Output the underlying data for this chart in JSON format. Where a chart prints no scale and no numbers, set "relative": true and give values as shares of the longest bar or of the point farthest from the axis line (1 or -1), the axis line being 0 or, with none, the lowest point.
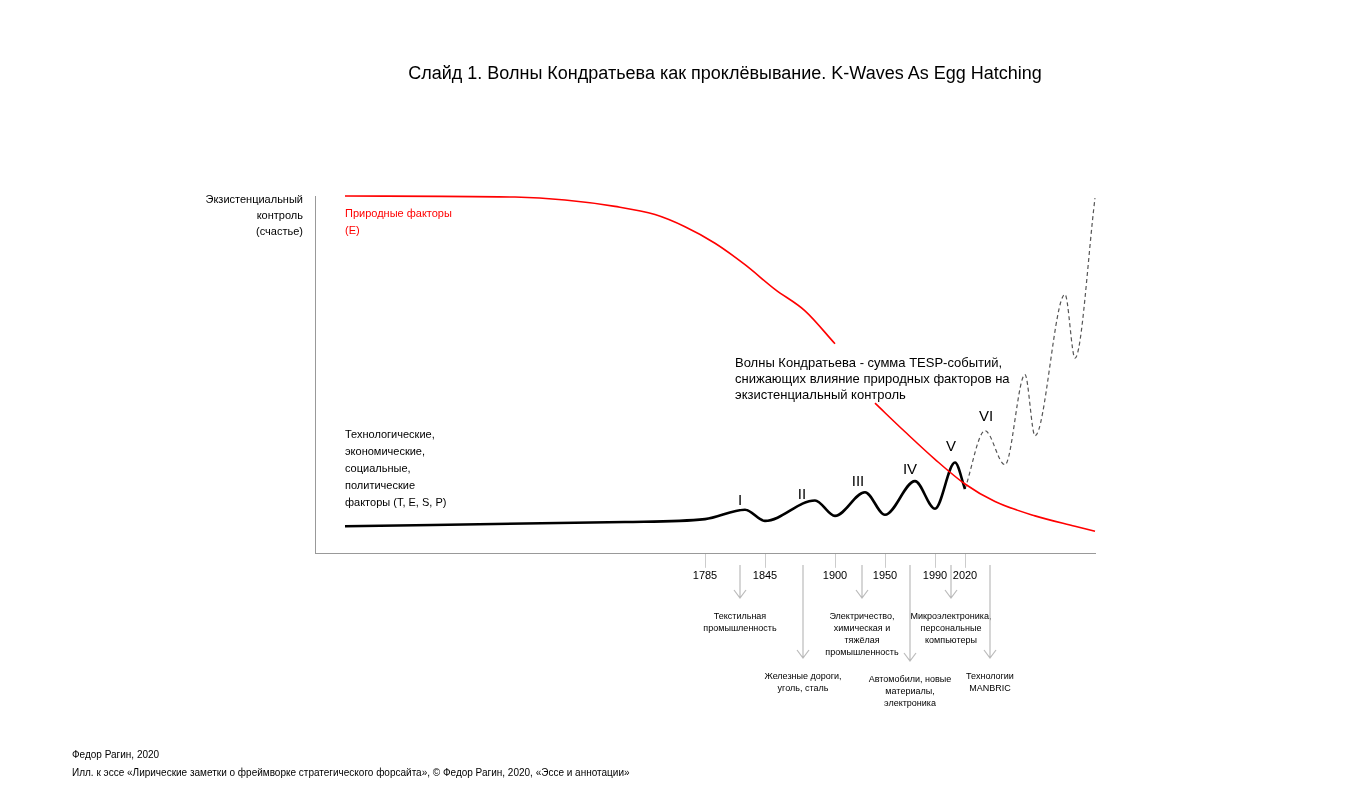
{
  "chart_data": {
    "type": "line",
    "relative": true,
    "title": "Слайд 1. Волны Кондратьева как проклёвывание. K-Waves As Egg Hatching",
    "ylabel": "Экзистенциальный контроль (счастье)",
    "categories": [
      null,
      null,
      null,
      null,
      null,
      null,
      null,
      null,
      null,
      null,
      null,
      null,
      null,
      null,
      null,
      null,
      null,
      null,
      null,
      null,
      null,
      null,
      null,
      null,
      null,
      null,
      null,
      null,
      null,
      null,
      null,
      null,
      null,
      null,
      null,
      null,
      null,
      null,
      null,
      "1785",
      null,
      null,
      null,
      null,
      null,
      "1845",
      null,
      null,
      null,
      null,
      null,
      null,
      "1900",
      null,
      null,
      null,
      null,
      "1950",
      null,
      null,
      null,
      null,
      "1990",
      null,
      null,
      "2020",
      null,
      null,
      null,
      null,
      null,
      null,
      null,
      null,
      null,
      null,
      null,
      null,
      null
    ],
    "series": [
      {
        "name": "Природные факторы (E)",
        "color": "#ff0000",
        "values": [
          null,
          null,
          null,
          1.0,
          null,
          null,
          null,
          null,
          null,
          null,
          null,
          null,
          null,
          null,
          null,
          null,
          null,
          null,
          null,
          null,
          0.997,
          null,
          null,
          null,
          null,
          0.989,
          null,
          null,
          null,
          null,
          0.971,
          null,
          null,
          null,
          0.948,
          null,
          null,
          0.914,
          null,
          null,
          0.868,
          null,
          null,
          0.808,
          null,
          null,
          0.739,
          null,
          null,
          0.679,
          null,
          null,
          0.587,
          null,
          null,
          null,
          null,
          null,
          null,
          null,
          null,
          null,
          null,
          null,
          null,
          null,
          null,
          null,
          null,
          null,
          null,
          null,
          null,
          null,
          null,
          null,
          null,
          null,
          null
        ]
      },
      {
        "color": "#ff0000",
        "values": [
          null,
          null,
          null,
          null,
          null,
          null,
          null,
          null,
          null,
          null,
          null,
          null,
          null,
          null,
          null,
          null,
          null,
          null,
          null,
          null,
          null,
          null,
          null,
          null,
          null,
          null,
          null,
          null,
          null,
          null,
          null,
          null,
          null,
          null,
          null,
          null,
          null,
          null,
          null,
          null,
          null,
          null,
          null,
          null,
          null,
          null,
          null,
          null,
          null,
          null,
          null,
          null,
          null,
          null,
          null,
          null,
          0.421,
          null,
          null,
          0.341,
          null,
          null,
          0.264,
          null,
          null,
          0.195,
          null,
          null,
          0.146,
          null,
          null,
          null,
          0.106,
          null,
          null,
          null,
          0.077,
          null,
          0.063
        ]
      },
      {
        "name": "Технологические, экономические, социальные, политические факторы (T, E, S, P)",
        "color": "#000000",
        "values": [
          null,
          null,
          null,
          0.077,
          null,
          null,
          null,
          null,
          null,
          null,
          null,
          null,
          null,
          null,
          null,
          null,
          null,
          null,
          null,
          null,
          null,
          null,
          null,
          null,
          null,
          null,
          null,
          null,
          null,
          null,
          null,
          0.089,
          null,
          null,
          null,
          null,
          null,
          null,
          null,
          0.097,
          null,
          null,
          null,
          0.123,
          null,
          0.092,
          null,
          null,
          null,
          null,
          0.149,
          null,
          0.106,
          null,
          null,
          0.172,
          null,
          0.109,
          null,
          null,
          0.203,
          null,
          0.126,
          null,
          0.255,
          0.181,
          null,
          null,
          null,
          null,
          null,
          null,
          null,
          null,
          null,
          null,
          null,
          null,
          null
        ]
      },
      {
        "color": "#555555",
        "line_style": "dashed",
        "values": [
          null,
          null,
          null,
          null,
          null,
          null,
          null,
          null,
          null,
          null,
          null,
          null,
          null,
          null,
          null,
          null,
          null,
          null,
          null,
          null,
          null,
          null,
          null,
          null,
          null,
          null,
          null,
          null,
          null,
          null,
          null,
          null,
          null,
          null,
          null,
          null,
          null,
          null,
          null,
          null,
          null,
          null,
          null,
          null,
          null,
          null,
          null,
          null,
          null,
          null,
          null,
          null,
          null,
          null,
          null,
          null,
          null,
          null,
          null,
          null,
          null,
          null,
          null,
          null,
          null,
          0.181,
          null,
          0.344,
          null,
          0.249,
          null,
          0.501,
          0.33,
          null,
          null,
          0.725,
          0.547,
          null,
          0.994
        ]
      }
    ],
    "annotations": [
      "Волны Кондратьева - сумма TESP-событий, снижающих влияние природных факторов на экзистенциальный контроль",
      "I",
      "II",
      "III",
      "IV",
      "V",
      "VI",
      "Текстильная промышленность",
      "Железные дороги, уголь, сталь",
      "Электричество, химическая и тяжёлая промышленность",
      "Автомобили, новые материалы, электроника",
      "Микроэлектроника, персональные компьютеры",
      "Технологии MANBRIC",
      "Федор Рагин, 2020",
      "Илл. к эссе «Лирические заметки о фреймворке стратегического форсайта», © Федор Рагин, 2020, «Эссе и аннотации»"
    ]
  }
}
